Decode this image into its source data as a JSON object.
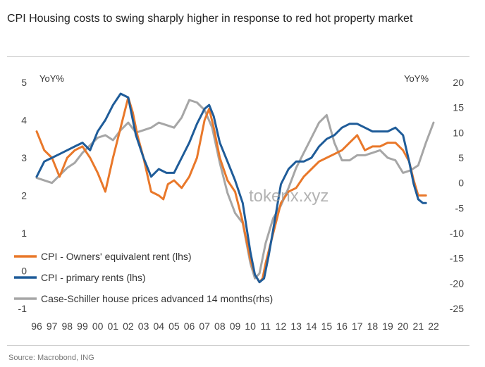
{
  "title": "CPI Housing costs to swing sharply higher in response to red hot property market",
  "source": "Source: Macrobond, ING",
  "watermark": "tokenx.xyz",
  "chart_data": {
    "type": "line",
    "title": "CPI Housing costs to swing sharply higher in response to red hot property market",
    "left_axis": {
      "label": "YoY%",
      "range": [
        -1,
        5
      ],
      "ticks": [
        -1,
        0,
        1,
        2,
        3,
        4,
        5
      ]
    },
    "right_axis": {
      "label": "YoY%",
      "range": [
        -25,
        20
      ],
      "ticks": [
        -25,
        -20,
        -15,
        -10,
        -5,
        0,
        5,
        10,
        15,
        20
      ]
    },
    "x_range": [
      1996,
      2022
    ],
    "x_tick_values": [
      1996,
      1997,
      1998,
      1999,
      2000,
      2001,
      2002,
      2003,
      2004,
      2005,
      2006,
      2007,
      2008,
      2009,
      2010,
      2011,
      2012,
      2013,
      2014,
      2015,
      2016,
      2017,
      2018,
      2019,
      2020,
      2021,
      2022
    ],
    "x_tick_labels": [
      "96",
      "97",
      "98",
      "99",
      "00",
      "01",
      "02",
      "03",
      "04",
      "05",
      "06",
      "07",
      "08",
      "09",
      "10",
      "11",
      "12",
      "13",
      "14",
      "15",
      "16",
      "17",
      "18",
      "19",
      "20",
      "21",
      "22"
    ],
    "legend_position": "bottom-left",
    "series": [
      {
        "name": "CPI - Owners' equivalent rent (lhs)",
        "axis": "left",
        "color": "#e9782a",
        "x": [
          1996.0,
          1996.5,
          1997.0,
          1997.5,
          1998.0,
          1998.5,
          1999.0,
          1999.5,
          2000.0,
          2000.5,
          2001.0,
          2001.5,
          2002.0,
          2002.3,
          2002.6,
          2003.0,
          2003.5,
          2004.0,
          2004.3,
          2004.6,
          2005.0,
          2005.5,
          2006.0,
          2006.5,
          2007.0,
          2007.3,
          2007.6,
          2008.0,
          2008.5,
          2009.0,
          2009.5,
          2010.0,
          2010.3,
          2010.6,
          2010.8,
          2011.0,
          2011.5,
          2012.0,
          2012.5,
          2013.0,
          2013.5,
          2014.0,
          2014.5,
          2015.0,
          2015.5,
          2016.0,
          2016.5,
          2017.0,
          2017.5,
          2018.0,
          2018.5,
          2019.0,
          2019.5,
          2020.0,
          2020.4,
          2020.7,
          2021.0,
          2021.3,
          2021.5
        ],
        "values": [
          3.7,
          3.2,
          3.0,
          2.5,
          3.0,
          3.2,
          3.3,
          3.0,
          2.6,
          2.1,
          3.0,
          3.8,
          4.6,
          4.2,
          3.6,
          3.0,
          2.1,
          2.0,
          1.9,
          2.3,
          2.4,
          2.2,
          2.5,
          3.0,
          4.0,
          4.3,
          3.8,
          3.0,
          2.4,
          2.1,
          1.3,
          0.3,
          -0.1,
          -0.3,
          -0.2,
          0.2,
          1.0,
          1.8,
          2.1,
          2.2,
          2.5,
          2.7,
          2.9,
          3.0,
          3.1,
          3.2,
          3.4,
          3.6,
          3.2,
          3.3,
          3.3,
          3.4,
          3.4,
          3.2,
          2.9,
          2.4,
          2.0,
          2.0,
          2.0
        ]
      },
      {
        "name": "CPI - primary rents (lhs)",
        "axis": "left",
        "color": "#1f5c99",
        "x": [
          1996.0,
          1996.5,
          1997.0,
          1997.5,
          1998.0,
          1998.5,
          1999.0,
          1999.5,
          2000.0,
          2000.5,
          2001.0,
          2001.5,
          2002.0,
          2002.5,
          2003.0,
          2003.5,
          2004.0,
          2004.5,
          2005.0,
          2005.5,
          2006.0,
          2006.5,
          2007.0,
          2007.3,
          2007.6,
          2008.0,
          2008.5,
          2009.0,
          2009.5,
          2010.0,
          2010.3,
          2010.6,
          2010.9,
          2011.2,
          2011.5,
          2012.0,
          2012.5,
          2013.0,
          2013.5,
          2014.0,
          2014.5,
          2015.0,
          2015.5,
          2016.0,
          2016.5,
          2017.0,
          2017.5,
          2018.0,
          2018.5,
          2019.0,
          2019.5,
          2020.0,
          2020.4,
          2020.7,
          2021.0,
          2021.3,
          2021.5
        ],
        "values": [
          2.5,
          2.9,
          3.0,
          3.1,
          3.2,
          3.3,
          3.4,
          3.2,
          3.7,
          4.0,
          4.4,
          4.7,
          4.6,
          3.6,
          3.0,
          2.5,
          2.7,
          2.6,
          2.6,
          3.0,
          3.4,
          3.9,
          4.3,
          4.4,
          4.1,
          3.4,
          2.9,
          2.4,
          1.8,
          0.5,
          -0.1,
          -0.3,
          -0.2,
          0.4,
          1.1,
          2.3,
          2.7,
          2.9,
          2.9,
          3.0,
          3.3,
          3.5,
          3.6,
          3.8,
          3.9,
          3.9,
          3.8,
          3.7,
          3.7,
          3.7,
          3.8,
          3.6,
          2.9,
          2.3,
          1.9,
          1.8,
          1.8
        ]
      },
      {
        "name": "Case-Schiller house prices advanced 14 months(rhs)",
        "axis": "right",
        "color": "#a6a6a6",
        "x": [
          1996.0,
          1996.5,
          1997.0,
          1997.5,
          1998.0,
          1998.5,
          1999.0,
          1999.5,
          2000.0,
          2000.5,
          2001.0,
          2001.5,
          2002.0,
          2002.5,
          2003.0,
          2003.5,
          2004.0,
          2004.5,
          2005.0,
          2005.5,
          2006.0,
          2006.5,
          2007.0,
          2007.5,
          2008.0,
          2008.5,
          2009.0,
          2009.5,
          2010.0,
          2010.3,
          2010.6,
          2011.0,
          2011.5,
          2012.0,
          2012.5,
          2013.0,
          2013.5,
          2014.0,
          2014.5,
          2015.0,
          2015.5,
          2016.0,
          2016.5,
          2017.0,
          2017.5,
          2018.0,
          2018.5,
          2019.0,
          2019.5,
          2020.0,
          2020.5,
          2021.0,
          2021.5,
          2022.0
        ],
        "values": [
          1.0,
          0.5,
          0.0,
          1.5,
          3.0,
          4.0,
          6.0,
          7.5,
          9.0,
          9.5,
          8.5,
          10.5,
          12.0,
          10.0,
          10.5,
          11.0,
          12.0,
          11.5,
          11.0,
          13.0,
          16.5,
          16.0,
          14.5,
          11.0,
          4.0,
          -2.0,
          -6.0,
          -8.0,
          -16.0,
          -19.0,
          -18.0,
          -12.0,
          -7.0,
          -4.5,
          -1.0,
          3.0,
          6.0,
          9.0,
          12.0,
          13.5,
          8.0,
          4.5,
          4.5,
          5.5,
          5.5,
          6.0,
          6.5,
          5.0,
          4.5,
          2.0,
          2.5,
          3.5,
          8.0,
          12.0
        ]
      }
    ]
  }
}
